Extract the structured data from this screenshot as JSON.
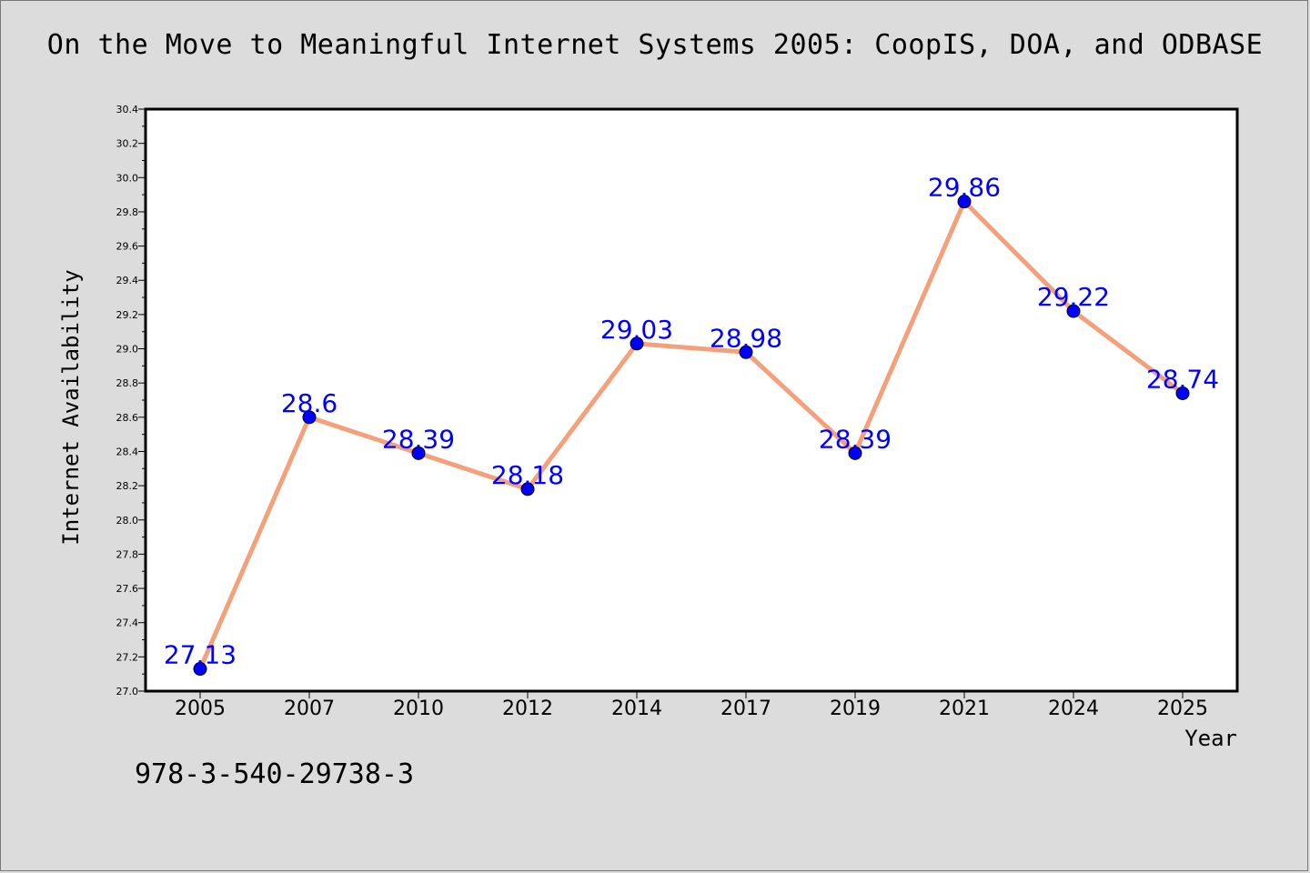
{
  "page": {
    "footnote": "978-3-540-29738-3"
  },
  "colors": {
    "background": "#dcdcdc",
    "plot_background": "#ffffff",
    "line": "#f4a07a",
    "marker": "#0000ff",
    "label": "#0000ff"
  },
  "chart_data": {
    "type": "line",
    "title": "On the Move to Meaningful Internet Systems 2005: CoopIS, DOA, and ODBASE",
    "xlabel": "Year",
    "ylabel": "Internet Availability",
    "categories": [
      "2005",
      "2007",
      "2010",
      "2012",
      "2014",
      "2017",
      "2019",
      "2021",
      "2024",
      "2025"
    ],
    "series": [
      {
        "values": [
          27.13,
          28.6,
          28.39,
          28.18,
          29.03,
          28.98,
          28.39,
          29.86,
          29.22,
          28.74
        ],
        "labels": [
          "27.13",
          "28.6",
          "28.39",
          "28.18",
          "29.03",
          "28.98",
          "28.39",
          "29.86",
          "29.22",
          "28.74"
        ]
      }
    ],
    "ylim": [
      27.0,
      30.4
    ],
    "yticks": [
      "27.0",
      "27.2",
      "27.4",
      "27.6",
      "27.8",
      "28.0",
      "28.2",
      "28.4",
      "28.6",
      "28.8",
      "29.0",
      "29.2",
      "29.4",
      "29.6",
      "29.8",
      "30.0",
      "30.2",
      "30.4"
    ],
    "grid": false,
    "legend": "none"
  }
}
